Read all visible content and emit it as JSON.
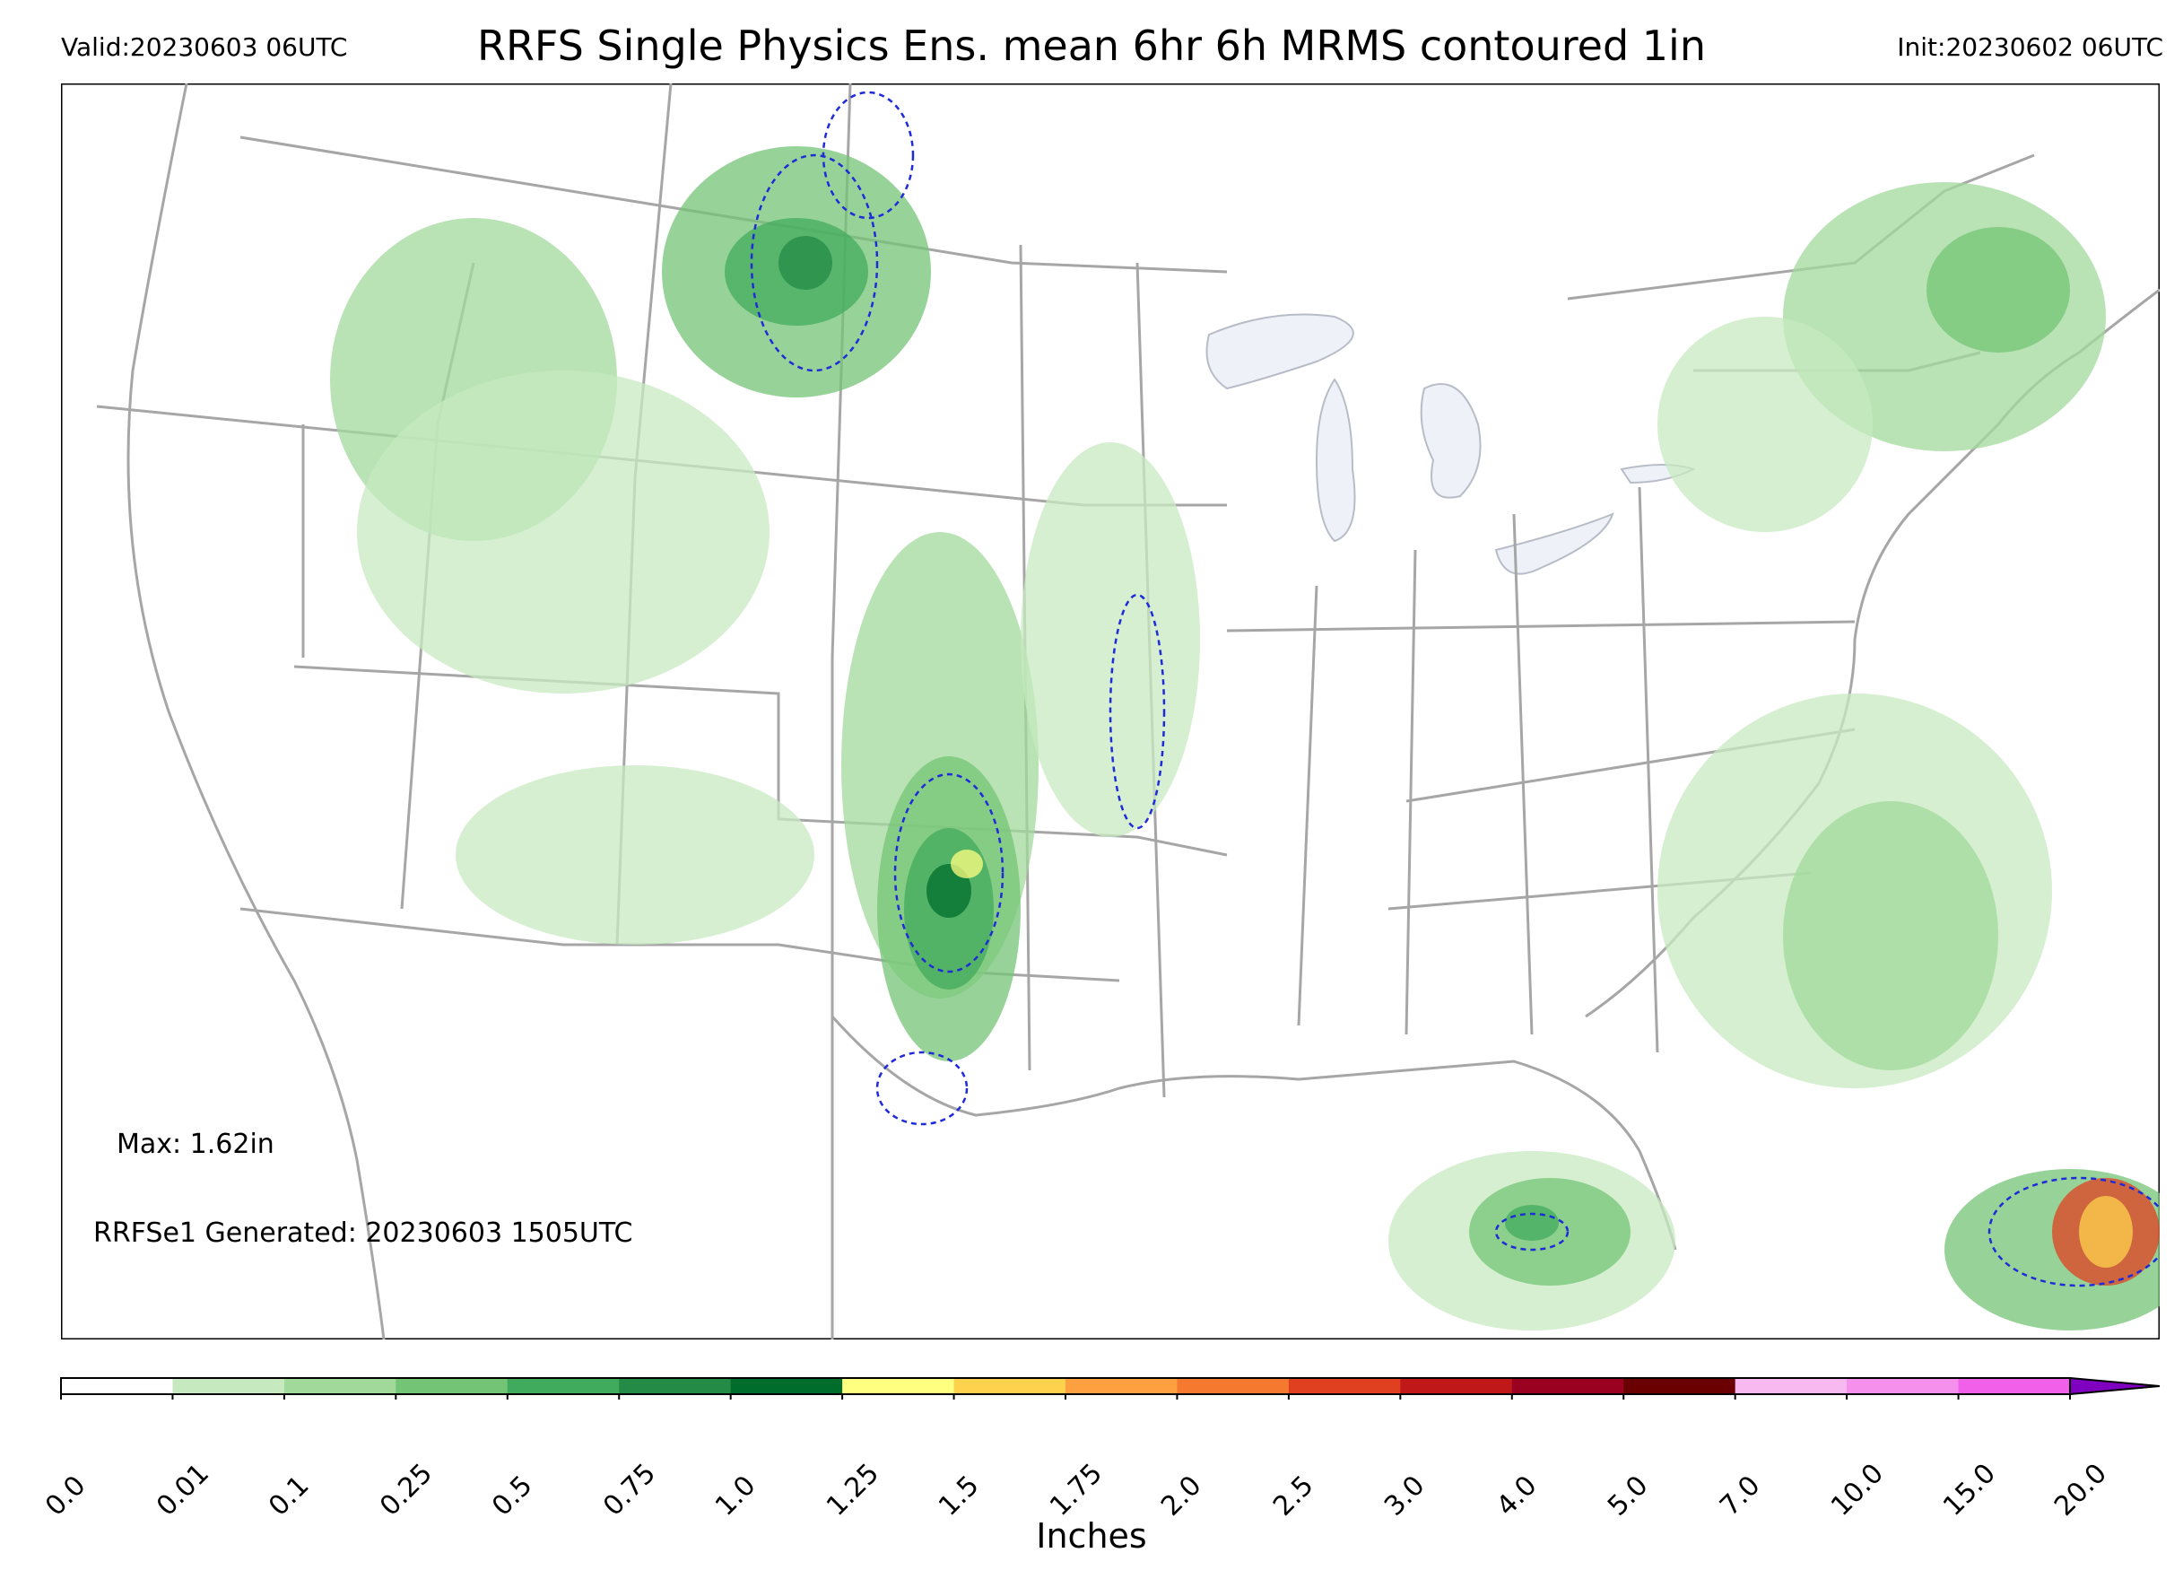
{
  "header": {
    "valid": "Valid:20230603 06UTC",
    "title": "RRFS Single Physics Ens. mean 6hr 6h MRMS contoured 1in",
    "init": "Init:20230602 06UTC"
  },
  "annotations": {
    "max": "Max: 1.62in",
    "generated": "RRFSe1 Generated: 20230603 1505UTC"
  },
  "colorbar": {
    "label": "Inches",
    "ticks": [
      "0.0",
      "0.01",
      "0.1",
      "0.25",
      "0.5",
      "0.75",
      "1.0",
      "1.25",
      "1.5",
      "1.75",
      "2.0",
      "2.5",
      "3.0",
      "4.0",
      "5.0",
      "7.0",
      "10.0",
      "15.0",
      "20.0"
    ],
    "colors": [
      "#ffffff",
      "#c7e9c0",
      "#a1d99b",
      "#74c476",
      "#41ab5d",
      "#238b45",
      "#006d2c",
      "#ffff80",
      "#ffd24d",
      "#ffa040",
      "#f57a30",
      "#e04020",
      "#c01818",
      "#9a0020",
      "#6a0000",
      "#f8b8f0",
      "#f590ec",
      "#f060e8",
      "#e040e0",
      "#c010d8",
      "#8000c0"
    ]
  },
  "map": {
    "colors": {
      "state_lines": "#a6a6a6",
      "lakes": "#eef2f8",
      "contour_1in": "#1f2bd8",
      "frame": "#000000"
    }
  }
}
